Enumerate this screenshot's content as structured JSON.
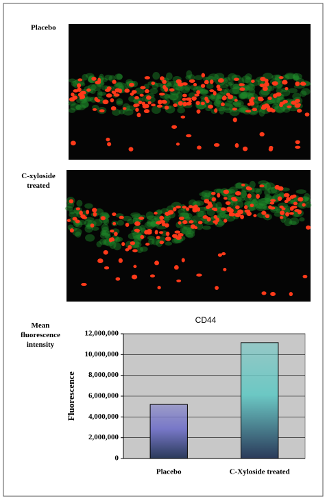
{
  "panels": [
    {
      "label": "Placebo"
    },
    {
      "label": "C-xyloside treated"
    }
  ],
  "quantification_label": "Mean fluorescence intensity",
  "chart_data": {
    "type": "bar",
    "title": "CD44",
    "y_label": "Fluorescence",
    "categories": [
      "Placebo",
      "C-Xyloside treated"
    ],
    "values": [
      5200000,
      11150000
    ],
    "colors": [
      "#7878c8",
      "#6cc8c4"
    ],
    "ylim": [
      0,
      12000000
    ],
    "yticks": [
      {
        "value": 0,
        "label": "0"
      },
      {
        "value": 2000000,
        "label": "2,000,000"
      },
      {
        "value": 4000000,
        "label": "4,000,000"
      },
      {
        "value": 6000000,
        "label": "6,000,000"
      },
      {
        "value": 8000000,
        "label": "8,000,000"
      },
      {
        "value": 10000000,
        "label": "10,000,000"
      },
      {
        "value": 12000000,
        "label": "12,000,000"
      }
    ],
    "grid": true
  }
}
